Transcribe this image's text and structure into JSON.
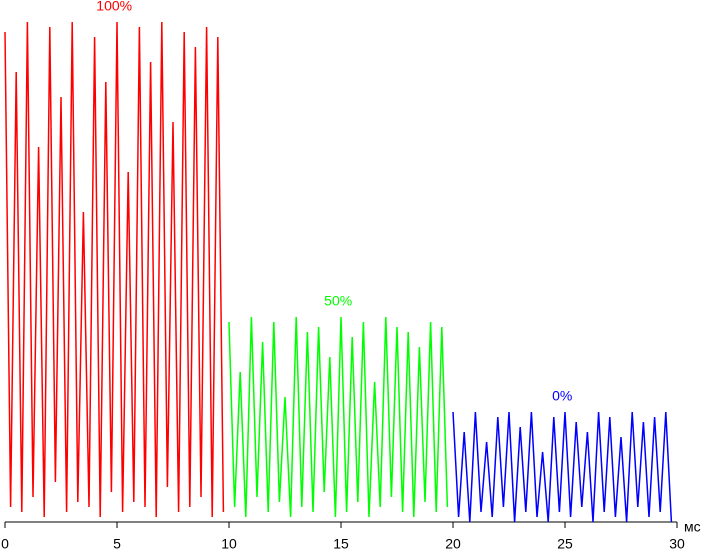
{
  "chart_data": {
    "type": "line",
    "x_label": "мс",
    "xlim": [
      0,
      30
    ],
    "xticks": [
      0,
      5,
      10,
      15,
      20,
      25,
      30
    ],
    "ylim": [
      0,
      100
    ],
    "series": [
      {
        "name": "100%",
        "color": "#ff0000",
        "x": [
          0,
          0.25,
          0.5,
          0.75,
          1,
          1.25,
          1.5,
          1.75,
          2,
          2.25,
          2.5,
          2.75,
          3,
          3.25,
          3.5,
          3.75,
          4,
          4.25,
          4.5,
          4.75,
          5,
          5.25,
          5.5,
          5.75,
          6,
          6.25,
          6.5,
          6.75,
          7,
          7.25,
          7.5,
          7.75,
          8,
          8.25,
          8.5,
          8.75,
          9,
          9.25,
          9.5,
          9.75
        ],
        "values": [
          98,
          3,
          90,
          2,
          100,
          5,
          75,
          1,
          99,
          8,
          85,
          2,
          100,
          4,
          62,
          3,
          97,
          1,
          88,
          6,
          100,
          2,
          70,
          4,
          99,
          3,
          92,
          1,
          100,
          7,
          80,
          2,
          98,
          3,
          95,
          5,
          99,
          1,
          97,
          2
        ]
      },
      {
        "name": "50%",
        "color": "#00ff00",
        "x": [
          10,
          10.25,
          10.5,
          10.75,
          11,
          11.25,
          11.5,
          11.75,
          12,
          12.25,
          12.5,
          12.75,
          13,
          13.25,
          13.5,
          13.75,
          14,
          14.25,
          14.5,
          14.75,
          15,
          15.25,
          15.5,
          15.75,
          16,
          16.25,
          16.5,
          16.75,
          17,
          17.25,
          17.5,
          17.75,
          18,
          18.25,
          18.5,
          18.75,
          19,
          19.25,
          19.5,
          19.75
        ],
        "values": [
          40,
          3,
          30,
          1,
          41,
          5,
          36,
          2,
          40,
          4,
          25,
          1,
          41,
          3,
          38,
          2,
          39,
          6,
          33,
          1,
          41,
          2,
          37,
          4,
          40,
          1,
          28,
          3,
          41,
          5,
          39,
          2,
          38,
          1,
          35,
          4,
          40,
          2,
          39,
          3
        ]
      },
      {
        "name": "0%",
        "color": "#0000ff",
        "x": [
          20,
          20.25,
          20.5,
          20.75,
          21,
          21.25,
          21.5,
          21.75,
          22,
          22.25,
          22.5,
          22.75,
          23,
          23.25,
          23.5,
          23.75,
          24,
          24.25,
          24.5,
          24.75,
          25,
          25.25,
          25.5,
          25.75,
          26,
          26.25,
          26.5,
          26.75,
          27,
          27.25,
          27.5,
          27.75,
          28,
          28.25,
          28.5,
          28.75,
          29,
          29.25,
          29.5,
          29.75
        ],
        "values": [
          22,
          1,
          18,
          0,
          22,
          2,
          16,
          1,
          21,
          3,
          22,
          0,
          19,
          2,
          22,
          1,
          14,
          0,
          21,
          2,
          22,
          1,
          20,
          3,
          18,
          0,
          22,
          2,
          21,
          1,
          17,
          0,
          22,
          3,
          20,
          1,
          21,
          2,
          22,
          0
        ]
      }
    ]
  }
}
